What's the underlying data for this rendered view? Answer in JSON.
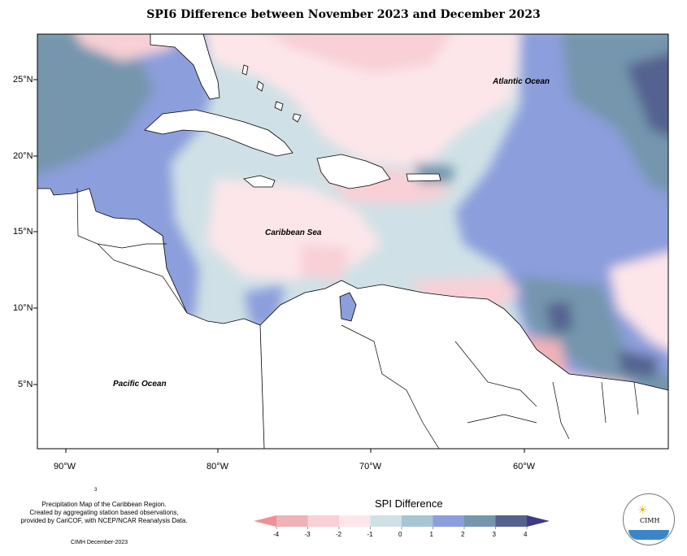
{
  "map": {
    "title": "SPI6 Difference between November 2023 and December 2023",
    "labels": {
      "atlantic": "Atlantic Ocean",
      "caribbean": "Caribbean Sea",
      "pacific": "Pacific Ocean"
    },
    "lat_ticks": [
      "25°N",
      "20°N",
      "15°N",
      "10°N",
      "5°N"
    ],
    "lon_ticks": [
      "90°W",
      "80°W",
      "70°W",
      "60°W"
    ]
  },
  "legend": {
    "title": "SPI Difference",
    "ticks": [
      "-4",
      "-3",
      "-2",
      "-1",
      "0",
      "1",
      "2",
      "3",
      "4"
    ],
    "colors": [
      "#f08f96",
      "#efb3b7",
      "#f8d0d6",
      "#fde6ea",
      "#cfe1e6",
      "#a8c5d3",
      "#8c9edc",
      "#7596ad",
      "#55628f",
      "#3f3a86"
    ]
  },
  "footer": {
    "line1": "Precipitation Map of the Caribbean Region.",
    "line2": "Created by aggregating station based observations,",
    "line3": "provided by CariCOF, with NCEP/NCAR Reanalysis Data.",
    "credit": "CIMH December-2023",
    "mark": "3"
  },
  "logo": {
    "name": "CIMH"
  }
}
